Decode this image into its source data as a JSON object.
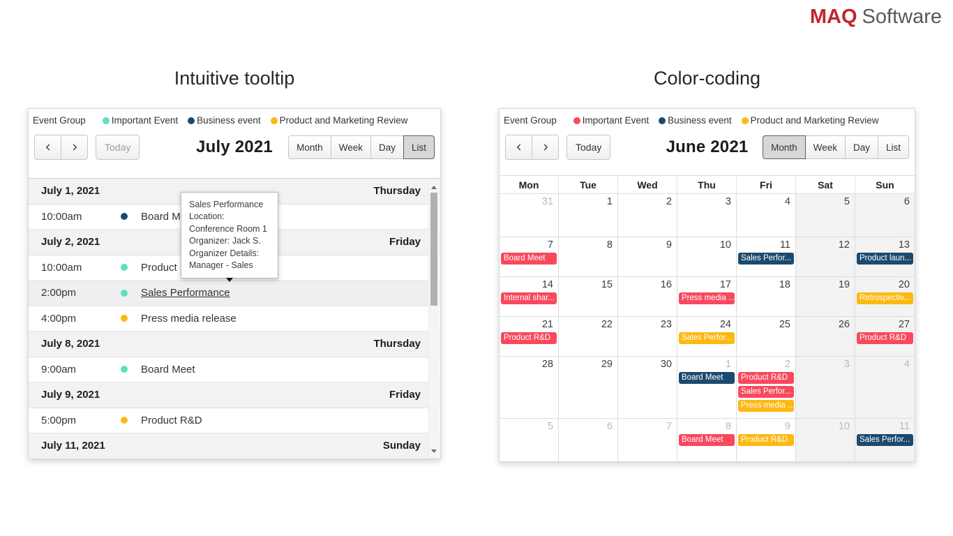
{
  "brand": {
    "maq": "MAQ",
    "software": "Software"
  },
  "colors": {
    "important_left": "#5be0c3",
    "important_right": "#f8495e",
    "business": "#1b4a6e",
    "product": "#fdb813"
  },
  "left_panel": {
    "heading": "Intuitive tooltip",
    "legend": {
      "label": "Event Group",
      "items": [
        {
          "label": "Important Event",
          "color": "#5be0c3"
        },
        {
          "label": "Business event",
          "color": "#1b4a6e"
        },
        {
          "label": "Product and Marketing Review",
          "color": "#fdb813"
        }
      ]
    },
    "toolbar": {
      "today": "Today",
      "today_disabled": true,
      "title": "July 2021",
      "views": [
        "Month",
        "Week",
        "Day",
        "List"
      ],
      "active_view": "List"
    },
    "list": [
      {
        "type": "day",
        "date": "July 1, 2021",
        "weekday": "Thursday"
      },
      {
        "type": "event",
        "time": "10:00am",
        "dot": "#1b4a6e",
        "title": "Board Meet"
      },
      {
        "type": "day",
        "date": "July 2, 2021",
        "weekday": "Friday"
      },
      {
        "type": "event",
        "time": "10:00am",
        "dot": "#5be0c3",
        "title": "Product R&D"
      },
      {
        "type": "event",
        "time": "2:00pm",
        "dot": "#5be0c3",
        "title": "Sales Performance",
        "hovered": true
      },
      {
        "type": "event",
        "time": "4:00pm",
        "dot": "#fdb813",
        "title": "Press media release"
      },
      {
        "type": "day",
        "date": "July 8, 2021",
        "weekday": "Thursday"
      },
      {
        "type": "event",
        "time": "9:00am",
        "dot": "#5be0c3",
        "title": "Board Meet"
      },
      {
        "type": "day",
        "date": "July 9, 2021",
        "weekday": "Friday"
      },
      {
        "type": "event",
        "time": "5:00pm",
        "dot": "#fdb813",
        "title": "Product R&D"
      },
      {
        "type": "day",
        "date": "July 11, 2021",
        "weekday": "Sunday"
      }
    ],
    "tooltip": {
      "lines": [
        "Sales Performance",
        "Location:",
        "Conference Room 1",
        "Organizer: Jack S.",
        "Organizer Details:",
        "Manager - Sales"
      ]
    }
  },
  "right_panel": {
    "heading": "Color-coding",
    "legend": {
      "label": "Event Group",
      "items": [
        {
          "label": "Important Event",
          "color": "#f8495e"
        },
        {
          "label": "Business event",
          "color": "#1b4a6e"
        },
        {
          "label": "Product and Marketing Review",
          "color": "#fdb813"
        }
      ]
    },
    "toolbar": {
      "today": "Today",
      "today_disabled": false,
      "title": "June 2021",
      "views": [
        "Month",
        "Week",
        "Day",
        "List"
      ],
      "active_view": "Month"
    },
    "weekday_headers": [
      "Mon",
      "Tue",
      "Wed",
      "Thu",
      "Fri",
      "Sat",
      "Sun"
    ],
    "weeks": [
      {
        "days": [
          {
            "num": "31",
            "out": true
          },
          {
            "num": "1"
          },
          {
            "num": "2"
          },
          {
            "num": "3"
          },
          {
            "num": "4"
          },
          {
            "num": "5"
          },
          {
            "num": "6"
          }
        ]
      },
      {
        "days": [
          {
            "num": "7",
            "events": [
              {
                "label": "Board Meet",
                "color": "#f8495e"
              }
            ]
          },
          {
            "num": "8"
          },
          {
            "num": "9"
          },
          {
            "num": "10"
          },
          {
            "num": "11",
            "events": [
              {
                "label": "Sales Perfor...",
                "color": "#1b4a6e"
              }
            ]
          },
          {
            "num": "12"
          },
          {
            "num": "13",
            "events": [
              {
                "label": "Product laun...",
                "color": "#1b4a6e"
              }
            ]
          }
        ]
      },
      {
        "days": [
          {
            "num": "14",
            "events": [
              {
                "label": "Internal shar...",
                "color": "#f8495e"
              }
            ]
          },
          {
            "num": "15"
          },
          {
            "num": "16"
          },
          {
            "num": "17",
            "events": [
              {
                "label": "Press media ...",
                "color": "#f8495e"
              }
            ]
          },
          {
            "num": "18"
          },
          {
            "num": "19"
          },
          {
            "num": "20",
            "events": [
              {
                "label": "Retrospectiv...",
                "color": "#fdb813"
              }
            ]
          }
        ]
      },
      {
        "days": [
          {
            "num": "21",
            "events": [
              {
                "label": "Product R&D",
                "color": "#f8495e"
              }
            ]
          },
          {
            "num": "22"
          },
          {
            "num": "23"
          },
          {
            "num": "24",
            "events": [
              {
                "label": "Sales Perfor...",
                "color": "#fdb813"
              }
            ]
          },
          {
            "num": "25"
          },
          {
            "num": "26"
          },
          {
            "num": "27",
            "events": [
              {
                "label": "Product R&D",
                "color": "#f8495e"
              }
            ]
          }
        ]
      },
      {
        "days": [
          {
            "num": "28"
          },
          {
            "num": "29"
          },
          {
            "num": "30"
          },
          {
            "num": "1",
            "out": true,
            "events": [
              {
                "label": "Board Meet",
                "color": "#1b4a6e"
              }
            ]
          },
          {
            "num": "2",
            "out": true,
            "events": [
              {
                "label": "Product R&D",
                "color": "#f8495e"
              },
              {
                "label": "Sales Perfor...",
                "color": "#f8495e"
              },
              {
                "label": "Press media ...",
                "color": "#fdb813"
              }
            ]
          },
          {
            "num": "3",
            "out": true
          },
          {
            "num": "4",
            "out": true
          }
        ]
      },
      {
        "days": [
          {
            "num": "5",
            "out": true
          },
          {
            "num": "6",
            "out": true
          },
          {
            "num": "7",
            "out": true
          },
          {
            "num": "8",
            "out": true,
            "events": [
              {
                "label": "Board Meet",
                "color": "#f8495e"
              }
            ]
          },
          {
            "num": "9",
            "out": true,
            "events": [
              {
                "label": "Product R&D",
                "color": "#fdb813"
              }
            ]
          },
          {
            "num": "10",
            "out": true
          },
          {
            "num": "11",
            "out": true,
            "events": [
              {
                "label": "Sales Perfor...",
                "color": "#1b4a6e"
              }
            ]
          }
        ]
      }
    ]
  }
}
